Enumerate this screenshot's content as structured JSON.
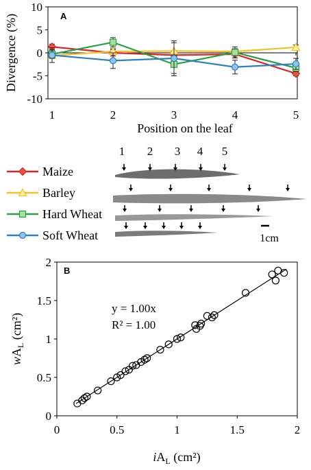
{
  "colors": {
    "Maize": "#d7262b",
    "Barley": "#f5c024",
    "Hard Wheat": "#27a144",
    "Soft Wheat": "#2f7fc1",
    "marker_fill_maize": "#e8553a",
    "marker_fill_barley": "#fff2b0",
    "marker_fill_hard": "#a9e0a0",
    "marker_fill_soft": "#8fc4ea",
    "axis": "#000000",
    "leaf": "#6d6d6d"
  },
  "legend": {
    "items": [
      "Maize",
      "Barley",
      "Hard Wheat",
      "Soft Wheat"
    ]
  },
  "leaf_figure": {
    "position_labels": [
      "1",
      "2",
      "3",
      "4",
      "5"
    ],
    "scale_label": "1cm"
  },
  "chart_data": [
    {
      "type": "line",
      "panel_label": "A",
      "xlabel": "Position on the leaf",
      "ylabel": "Divergence (%)",
      "x": [
        1,
        2,
        3,
        4,
        5
      ],
      "xlim": [
        1,
        5
      ],
      "ylim": [
        -10,
        10
      ],
      "xticks": [
        "1",
        "2",
        "3",
        "4",
        "5"
      ],
      "yticks": [
        "-10",
        "-5",
        "0",
        "5",
        "10"
      ],
      "grid": false,
      "series": [
        {
          "name": "Maize",
          "marker": "diamond",
          "values": [
            1.3,
            0.0,
            -0.5,
            -0.3,
            -4.5
          ],
          "errors": [
            0.6,
            0.7,
            0.9,
            0.8,
            0.5
          ]
        },
        {
          "name": "Barley",
          "marker": "triangle",
          "values": [
            -0.6,
            0.3,
            0.4,
            0.3,
            1.2
          ],
          "errors": [
            0.5,
            0.6,
            1.8,
            0.6,
            0.5
          ]
        },
        {
          "name": "Hard Wheat",
          "marker": "square",
          "values": [
            -0.3,
            2.3,
            -2.5,
            0.1,
            -3.3
          ],
          "errors": [
            0.9,
            1.0,
            2.0,
            1.2,
            0.8
          ]
        },
        {
          "name": "Soft Wheat",
          "marker": "circle",
          "values": [
            -0.5,
            -1.7,
            -1.2,
            -3.1,
            -2.4
          ],
          "errors": [
            1.6,
            1.7,
            3.8,
            1.5,
            1.2
          ]
        }
      ]
    },
    {
      "type": "scatter",
      "panel_label": "B",
      "xlabel_main": "iA",
      "xlabel_sub": "L",
      "xlabel_unit": " (cm²)",
      "ylabel_main": "wA",
      "ylabel_sub": "L",
      "ylabel_unit": " (cm²)",
      "equation": "y = 1.00x",
      "r2": "R² = 1.00",
      "xlim": [
        0,
        2
      ],
      "ylim": [
        0,
        2
      ],
      "xticks": [
        "0",
        "0.5",
        "1",
        "1.5",
        "2"
      ],
      "yticks": [
        "0",
        "0.5",
        "1",
        "1.5",
        "2"
      ],
      "grid": false,
      "trendline": {
        "slope": 1.0,
        "intercept": 0,
        "x_range": [
          0.16,
          1.91
        ]
      },
      "points": [
        [
          0.17,
          0.16
        ],
        [
          0.21,
          0.2
        ],
        [
          0.23,
          0.23
        ],
        [
          0.25,
          0.25
        ],
        [
          0.34,
          0.33
        ],
        [
          0.45,
          0.45
        ],
        [
          0.5,
          0.5
        ],
        [
          0.53,
          0.53
        ],
        [
          0.57,
          0.58
        ],
        [
          0.6,
          0.6
        ],
        [
          0.63,
          0.65
        ],
        [
          0.66,
          0.66
        ],
        [
          0.7,
          0.7
        ],
        [
          0.73,
          0.73
        ],
        [
          0.75,
          0.75
        ],
        [
          0.86,
          0.86
        ],
        [
          0.93,
          0.93
        ],
        [
          1.0,
          1.0
        ],
        [
          1.03,
          1.02
        ],
        [
          1.15,
          1.18
        ],
        [
          1.16,
          1.13
        ],
        [
          1.19,
          1.17
        ],
        [
          1.2,
          1.2
        ],
        [
          1.25,
          1.3
        ],
        [
          1.29,
          1.28
        ],
        [
          1.31,
          1.31
        ],
        [
          1.57,
          1.6
        ],
        [
          1.79,
          1.84
        ],
        [
          1.82,
          1.76
        ],
        [
          1.84,
          1.89
        ],
        [
          1.89,
          1.86
        ]
      ]
    }
  ]
}
